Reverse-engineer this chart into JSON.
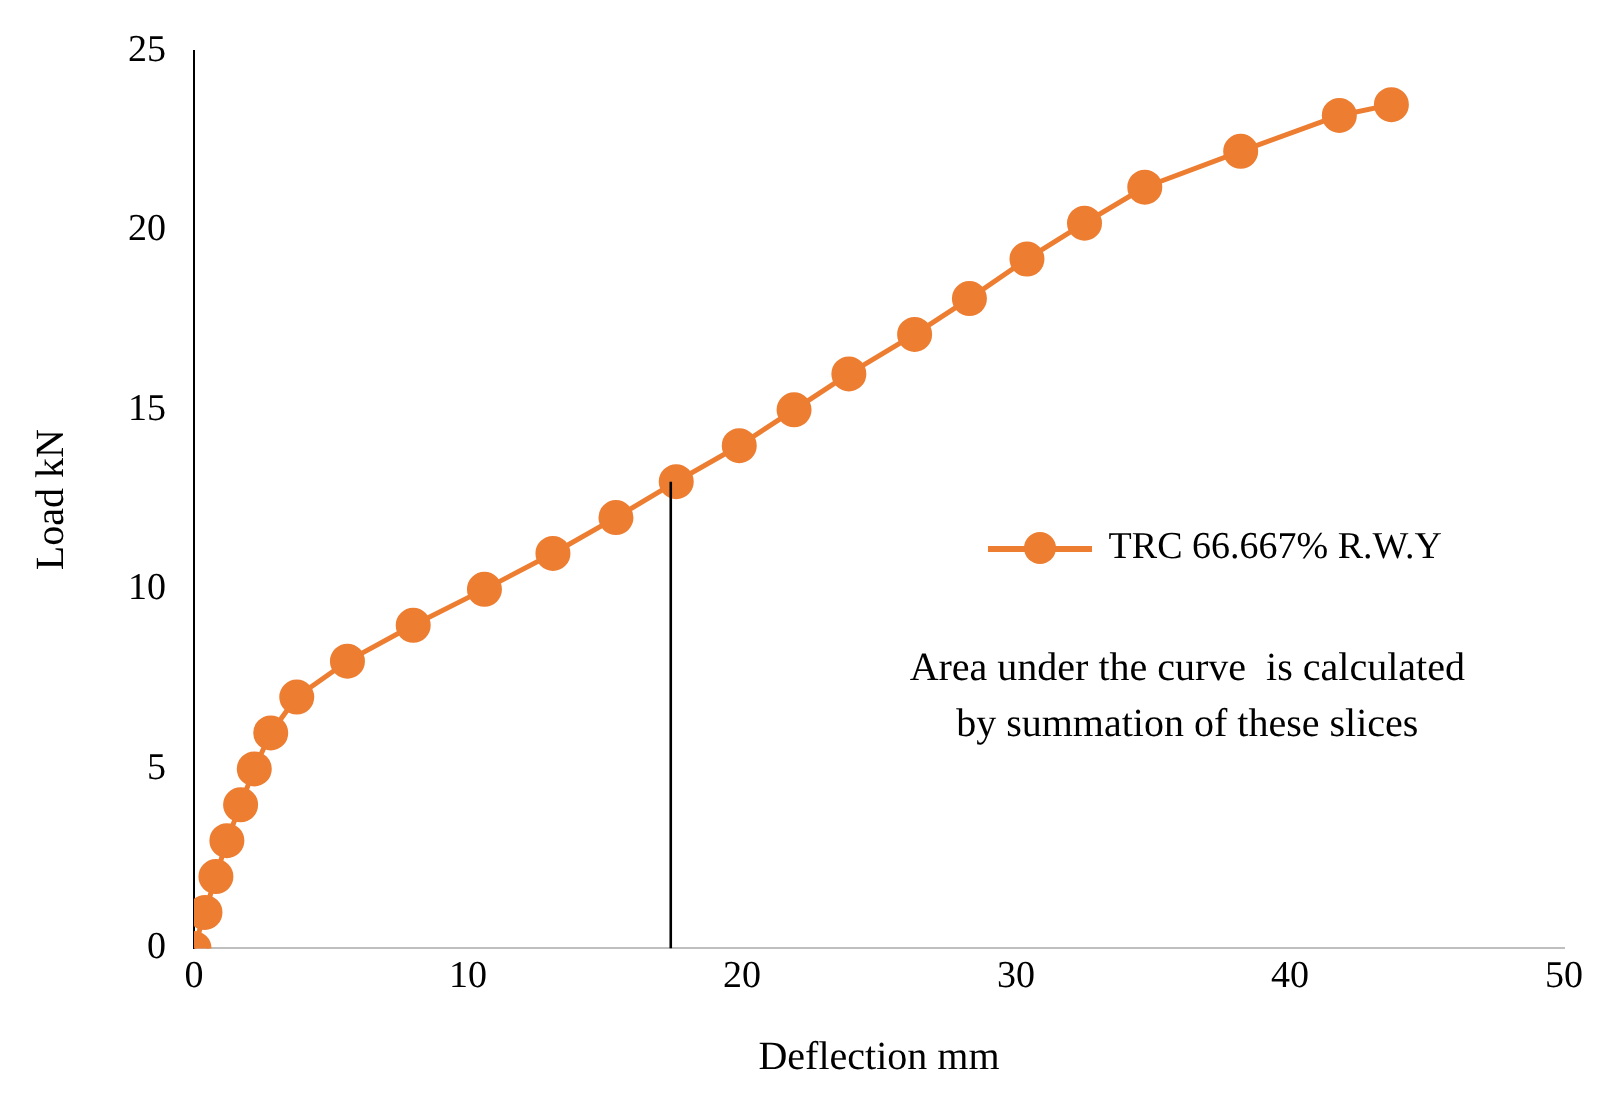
{
  "chart_data": {
    "type": "line",
    "xlabel": "Deflection mm",
    "ylabel": "Load kN",
    "xlim": [
      0,
      50
    ],
    "xticks": [
      0,
      10,
      20,
      30,
      40,
      50
    ],
    "ylim": [
      0,
      25
    ],
    "yticks": [
      0,
      5,
      10,
      15,
      20,
      25
    ],
    "grid": false,
    "legend": "right",
    "marker": "circle",
    "line_style": "solid",
    "annotations": [
      "Area under the curve  is calculated by summation of these slices"
    ],
    "series": [
      {
        "name": "TRC 66.667% R.W.Y",
        "color": "#ed7d31",
        "x": [
          0,
          0.4,
          0.8,
          1.2,
          1.7,
          2.2,
          2.8,
          3.75,
          5.6,
          8.0,
          10.6,
          13.1,
          15.4,
          17.6,
          19.9,
          21.9,
          23.9,
          26.3,
          28.3,
          30.4,
          32.5,
          34.7,
          38.2,
          41.8,
          43.7
        ],
        "values": [
          0,
          1,
          2,
          3,
          4,
          5,
          6,
          7,
          8,
          9,
          10,
          11,
          12,
          13,
          14,
          15,
          16,
          17.1,
          18.1,
          19.2,
          20.2,
          21.2,
          22.2,
          23.2,
          23.5
        ]
      },
      {
        "color": "#000000",
        "marker": "none",
        "x": [
          17.4,
          17.4
        ],
        "values": [
          0,
          13
        ]
      }
    ]
  }
}
